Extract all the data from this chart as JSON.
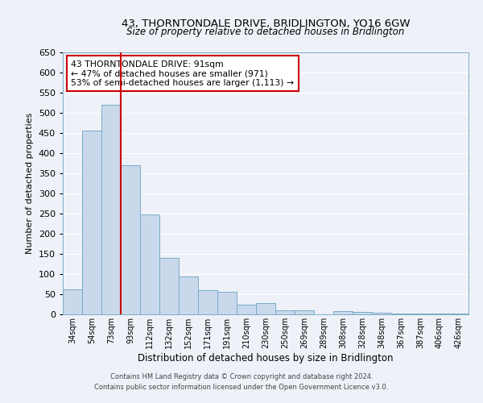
{
  "title": "43, THORNTONDALE DRIVE, BRIDLINGTON, YO16 6GW",
  "subtitle": "Size of property relative to detached houses in Bridlington",
  "xlabel": "Distribution of detached houses by size in Bridlington",
  "ylabel": "Number of detached properties",
  "bar_labels": [
    "34sqm",
    "54sqm",
    "73sqm",
    "93sqm",
    "112sqm",
    "132sqm",
    "152sqm",
    "171sqm",
    "191sqm",
    "210sqm",
    "230sqm",
    "250sqm",
    "269sqm",
    "289sqm",
    "308sqm",
    "328sqm",
    "348sqm",
    "367sqm",
    "387sqm",
    "406sqm",
    "426sqm"
  ],
  "bar_values": [
    62,
    457,
    521,
    370,
    248,
    140,
    95,
    61,
    57,
    25,
    28,
    10,
    11,
    0,
    8,
    6,
    5,
    3,
    2,
    2,
    2
  ],
  "bar_color": "#c9d9eb",
  "bar_edge_color": "#7aaac8",
  "background_color": "#eef2f8",
  "grid_color": "#ffffff",
  "annotation_title": "43 THORNTONDALE DRIVE: 91sqm",
  "annotation_line1": "← 47% of detached houses are smaller (971)",
  "annotation_line2": "53% of semi-detached houses are larger (1,113) →",
  "annotation_box_color": "#ffffff",
  "annotation_border_color": "#cc0000",
  "red_line_color": "#cc0000",
  "ylim": [
    0,
    650
  ],
  "yticks": [
    0,
    50,
    100,
    150,
    200,
    250,
    300,
    350,
    400,
    450,
    500,
    550,
    600,
    650
  ],
  "footnote1": "Contains HM Land Registry data © Crown copyright and database right 2024.",
  "footnote2": "Contains public sector information licensed under the Open Government Licence v3.0."
}
